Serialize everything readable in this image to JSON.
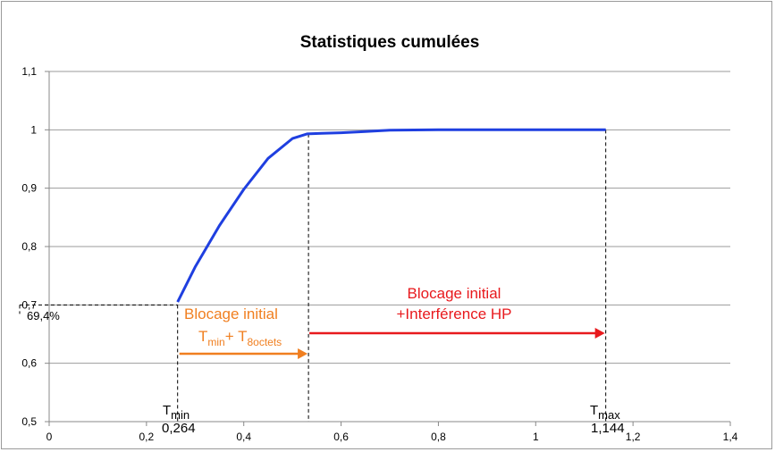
{
  "chart_data": {
    "type": "line",
    "title": "Statistiques cumulées",
    "xlabel": "",
    "ylabel": "",
    "xlim": [
      0,
      1.4
    ],
    "ylim": [
      0.5,
      1.1
    ],
    "x_ticks": [
      "0",
      "0,2",
      "0,4",
      "0,6",
      "0,8",
      "1",
      "1,2",
      "1,4"
    ],
    "y_ticks": [
      "0,5",
      "0,6",
      "0,7",
      "0,8",
      "0,9",
      "1",
      "1,1"
    ],
    "grid": "horizontal",
    "legend": "none",
    "series": [
      {
        "color": "#1f3fe0",
        "x": [
          0.264,
          0.3,
          0.35,
          0.4,
          0.45,
          0.5,
          0.53,
          0.56,
          0.6,
          0.65,
          0.7,
          0.8,
          0.9,
          1.0,
          1.1,
          1.144
        ],
        "y": [
          0.705,
          0.765,
          0.836,
          0.898,
          0.951,
          0.985,
          0.993,
          0.994,
          0.995,
          0.997,
          0.9995,
          1.0,
          1.0,
          1.0,
          1.0,
          1.0
        ]
      }
    ],
    "annotations": {
      "percent_label": "69,4%",
      "tmin": {
        "base": "T",
        "sub": "min",
        "value": "0,264"
      },
      "tmax": {
        "base": "T",
        "sub": "max",
        "value": "1,144"
      },
      "orange_label": "Blocage initial",
      "orange_formula": {
        "t": "T",
        "sub1": "min",
        "plus": "+ T",
        "sub2": "8octets"
      },
      "red_label_line1": "Blocage initial",
      "red_label_line2": "+Interférence HP",
      "orange_color": "#f07f20",
      "red_color": "#e8191d"
    }
  }
}
